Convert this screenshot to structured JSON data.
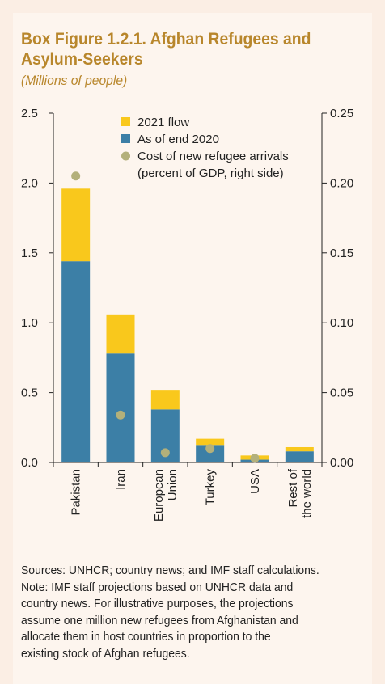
{
  "header": {
    "title_line1": "Box Figure 1.2.1. Afghan Refugees and",
    "title_line2": "Asylum-Seekers",
    "subtitle": "(Millions of people)"
  },
  "chart_data": {
    "type": "bar",
    "stacked": true,
    "categories": [
      [
        "Pakistan"
      ],
      [
        "Iran"
      ],
      [
        "European",
        "Union"
      ],
      [
        "Turkey"
      ],
      [
        "USA"
      ],
      [
        "Rest of",
        "the world"
      ]
    ],
    "series": [
      {
        "name": "As of end 2020",
        "color": "#3c7fa6",
        "values": [
          1.44,
          0.78,
          0.38,
          0.12,
          0.02,
          0.08
        ]
      },
      {
        "name": "2021 flow",
        "color": "#f9c81c",
        "values": [
          0.52,
          0.28,
          0.14,
          0.05,
          0.03,
          0.03
        ]
      }
    ],
    "points": {
      "name_line1": "Cost of new refugee arrivals",
      "name_line2": "(percent of GDP, right side)",
      "color": "#b3b07a",
      "axis": "right",
      "values": [
        0.205,
        0.034,
        0.007,
        0.01,
        0.003,
        null
      ]
    },
    "left_axis": {
      "min": 0,
      "max": 2.5,
      "ticks": [
        "0.0",
        "0.5",
        "1.0",
        "1.5",
        "2.0",
        "2.5"
      ]
    },
    "right_axis": {
      "min": 0,
      "max": 0.25,
      "ticks": [
        "0.00",
        "0.05",
        "0.10",
        "0.15",
        "0.20",
        "0.25"
      ]
    },
    "legend": {
      "position": "top-center",
      "entries": [
        "2021 flow",
        "As of end 2020",
        "Cost of new refugee arrivals",
        "(percent of GDP, right side)"
      ]
    }
  },
  "notes": [
    "Sources: UNHCR; country news; and IMF staff calculations.",
    "Note: IMF staff projections based on UNHCR data and",
    "country news. For illustrative purposes, the projections",
    "assume one million new refugees from Afghanistan and",
    "allocate them in host countries in proportion to the",
    "existing stock of Afghan refugees."
  ]
}
